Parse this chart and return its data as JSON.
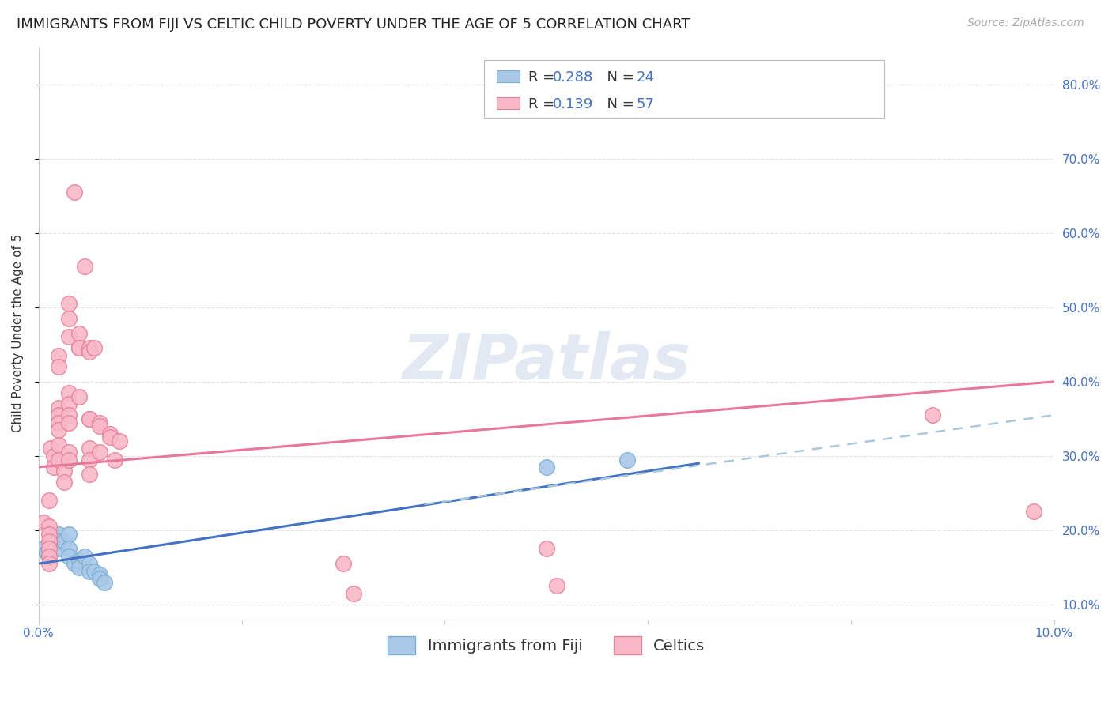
{
  "title": "IMMIGRANTS FROM FIJI VS CELTIC CHILD POVERTY UNDER THE AGE OF 5 CORRELATION CHART",
  "source": "Source: ZipAtlas.com",
  "ylabel": "Child Poverty Under the Age of 5",
  "x_min": 0.0,
  "x_max": 0.1,
  "y_min": 0.08,
  "y_max": 0.85,
  "x_ticks": [
    0.0,
    0.02,
    0.04,
    0.06,
    0.08,
    0.1
  ],
  "x_tick_labels": [
    "0.0%",
    "",
    "",
    "",
    "",
    "10.0%"
  ],
  "y_ticks_right": [
    0.1,
    0.2,
    0.3,
    0.4,
    0.5,
    0.6,
    0.7,
    0.8
  ],
  "y_tick_labels_right": [
    "10.0%",
    "20.0%",
    "30.0%",
    "40.0%",
    "50.0%",
    "60.0%",
    "70.0%",
    "80.0%"
  ],
  "fiji_color": "#aac8e8",
  "fiji_edge_color": "#7aafd4",
  "celtic_color": "#f9b8c8",
  "celtic_edge_color": "#e8819a",
  "fiji_R": 0.288,
  "fiji_N": 24,
  "celtic_R": 0.139,
  "celtic_N": 57,
  "legend_label_fiji": "Immigrants from Fiji",
  "legend_label_celtic": "Celtics",
  "fiji_scatter": [
    [
      0.0005,
      0.175
    ],
    [
      0.0008,
      0.17
    ],
    [
      0.001,
      0.165
    ],
    [
      0.001,
      0.175
    ],
    [
      0.0015,
      0.19
    ],
    [
      0.002,
      0.195
    ],
    [
      0.002,
      0.185
    ],
    [
      0.002,
      0.175
    ],
    [
      0.0025,
      0.185
    ],
    [
      0.003,
      0.195
    ],
    [
      0.003,
      0.175
    ],
    [
      0.003,
      0.165
    ],
    [
      0.0035,
      0.155
    ],
    [
      0.004,
      0.16
    ],
    [
      0.004,
      0.15
    ],
    [
      0.0045,
      0.165
    ],
    [
      0.005,
      0.155
    ],
    [
      0.005,
      0.145
    ],
    [
      0.0055,
      0.145
    ],
    [
      0.006,
      0.14
    ],
    [
      0.006,
      0.135
    ],
    [
      0.0065,
      0.13
    ],
    [
      0.05,
      0.285
    ],
    [
      0.058,
      0.295
    ]
  ],
  "celtic_scatter": [
    [
      0.0005,
      0.21
    ],
    [
      0.001,
      0.205
    ],
    [
      0.001,
      0.195
    ],
    [
      0.001,
      0.185
    ],
    [
      0.001,
      0.175
    ],
    [
      0.001,
      0.165
    ],
    [
      0.001,
      0.155
    ],
    [
      0.001,
      0.24
    ],
    [
      0.0012,
      0.31
    ],
    [
      0.0015,
      0.3
    ],
    [
      0.0015,
      0.285
    ],
    [
      0.002,
      0.435
    ],
    [
      0.002,
      0.42
    ],
    [
      0.002,
      0.365
    ],
    [
      0.002,
      0.355
    ],
    [
      0.002,
      0.345
    ],
    [
      0.002,
      0.335
    ],
    [
      0.002,
      0.315
    ],
    [
      0.002,
      0.295
    ],
    [
      0.0025,
      0.28
    ],
    [
      0.0025,
      0.265
    ],
    [
      0.003,
      0.505
    ],
    [
      0.003,
      0.485
    ],
    [
      0.003,
      0.46
    ],
    [
      0.003,
      0.385
    ],
    [
      0.003,
      0.37
    ],
    [
      0.003,
      0.355
    ],
    [
      0.003,
      0.345
    ],
    [
      0.003,
      0.305
    ],
    [
      0.003,
      0.295
    ],
    [
      0.0035,
      0.655
    ],
    [
      0.004,
      0.465
    ],
    [
      0.004,
      0.445
    ],
    [
      0.004,
      0.445
    ],
    [
      0.004,
      0.38
    ],
    [
      0.0045,
      0.555
    ],
    [
      0.005,
      0.445
    ],
    [
      0.005,
      0.44
    ],
    [
      0.005,
      0.35
    ],
    [
      0.005,
      0.35
    ],
    [
      0.005,
      0.31
    ],
    [
      0.005,
      0.295
    ],
    [
      0.005,
      0.275
    ],
    [
      0.0055,
      0.445
    ],
    [
      0.006,
      0.345
    ],
    [
      0.006,
      0.34
    ],
    [
      0.006,
      0.305
    ],
    [
      0.007,
      0.33
    ],
    [
      0.007,
      0.325
    ],
    [
      0.0075,
      0.295
    ],
    [
      0.008,
      0.32
    ],
    [
      0.03,
      0.155
    ],
    [
      0.031,
      0.115
    ],
    [
      0.05,
      0.175
    ],
    [
      0.051,
      0.125
    ],
    [
      0.088,
      0.355
    ],
    [
      0.098,
      0.225
    ]
  ],
  "fiji_line": [
    0.0,
    0.155,
    0.065,
    0.29
  ],
  "celtic_line": [
    0.0,
    0.285,
    0.1,
    0.4
  ],
  "dashed_line": [
    0.038,
    0.235,
    0.1,
    0.355
  ],
  "background_color": "#ffffff",
  "grid_color": "#e0e0e0",
  "title_fontsize": 13,
  "axis_label_fontsize": 11,
  "tick_fontsize": 11,
  "legend_fontsize": 13,
  "text_color_blue": "#4472c4",
  "text_color_dark": "#333333"
}
